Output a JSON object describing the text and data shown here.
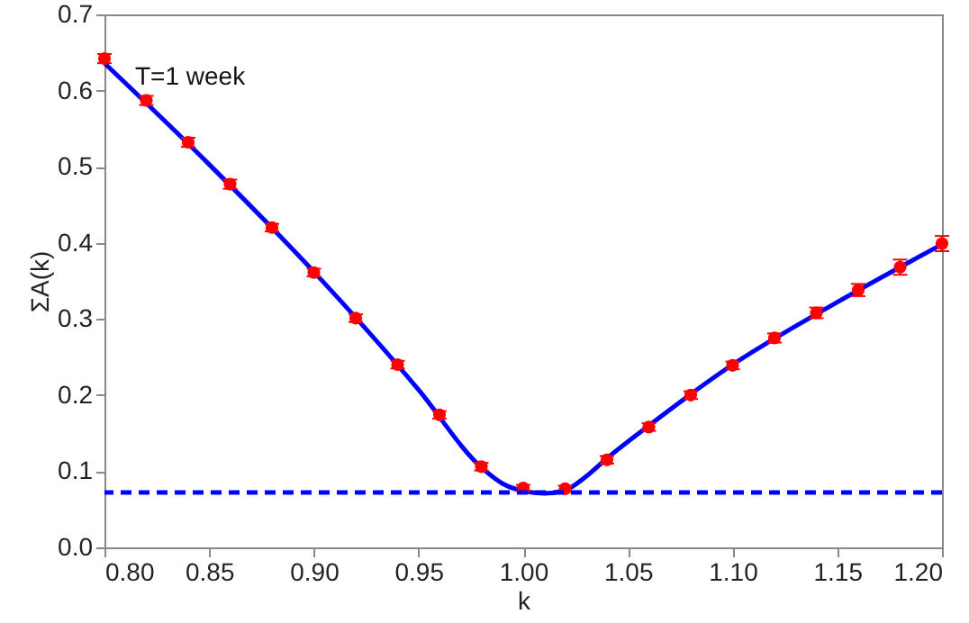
{
  "chart_data": {
    "type": "scatter",
    "xlabel": "k",
    "ylabel": "ΣA(k)",
    "annotations": [
      "T=1 week"
    ],
    "xlim": [
      0.8,
      1.2
    ],
    "xticks": [
      {
        "value": 0.8,
        "label": "0.80"
      },
      {
        "value": 0.85,
        "label": "0.85"
      },
      {
        "value": 0.9,
        "label": "0.90"
      },
      {
        "value": 0.95,
        "label": "0.95"
      },
      {
        "value": 1.0,
        "label": "1.00"
      },
      {
        "value": 1.05,
        "label": "1.05"
      },
      {
        "value": 1.1,
        "label": "1.10"
      },
      {
        "value": 1.15,
        "label": "1.15"
      },
      {
        "value": 1.2,
        "label": "1.20"
      }
    ],
    "ylim": [
      0,
      0.7
    ],
    "yticks": [
      {
        "value": 0,
        "label": "0.0"
      },
      0.1,
      0.2,
      0.3,
      0.4,
      0.5,
      0.6,
      0.7
    ],
    "grid": false,
    "marker": "circle",
    "series": [
      {
        "type": "line",
        "marker": "none",
        "color": "#0000ff",
        "x": [
          0.8,
          0.85,
          0.9,
          0.95,
          0.98,
          0.99,
          1.0,
          1.01,
          1.02,
          1.03,
          1.04,
          1.06,
          1.1,
          1.15,
          1.2
        ],
        "values": [
          0.636,
          0.503,
          0.362,
          0.207,
          0.105,
          0.084,
          0.074,
          0.071,
          0.075,
          0.093,
          0.117,
          0.16,
          0.24,
          0.322,
          0.398
        ]
      },
      {
        "color": "#ff0000",
        "x": [
          0.8,
          0.82,
          0.84,
          0.86,
          0.88,
          0.9,
          0.92,
          0.94,
          0.96,
          0.98,
          1.0,
          1.02,
          1.04,
          1.06,
          1.08,
          1.1,
          1.12,
          1.14,
          1.16,
          1.18,
          1.2
        ],
        "values": [
          0.642,
          0.587,
          0.532,
          0.477,
          0.42,
          0.361,
          0.301,
          0.24,
          0.174,
          0.106,
          0.078,
          0.077,
          0.115,
          0.158,
          0.2,
          0.239,
          0.275,
          0.308,
          0.338,
          0.368,
          0.399
        ],
        "errors": [
          0.006,
          0.006,
          0.006,
          0.006,
          0.005,
          0.005,
          0.005,
          0.005,
          0.005,
          0.005,
          0.004,
          0.004,
          0.005,
          0.005,
          0.005,
          0.005,
          0.006,
          0.007,
          0.008,
          0.01,
          0.01
        ]
      }
    ],
    "ref_lines": [
      {
        "axis": "y",
        "value": 0.072,
        "color": "#0000ff",
        "line_style": "dashed"
      }
    ]
  }
}
